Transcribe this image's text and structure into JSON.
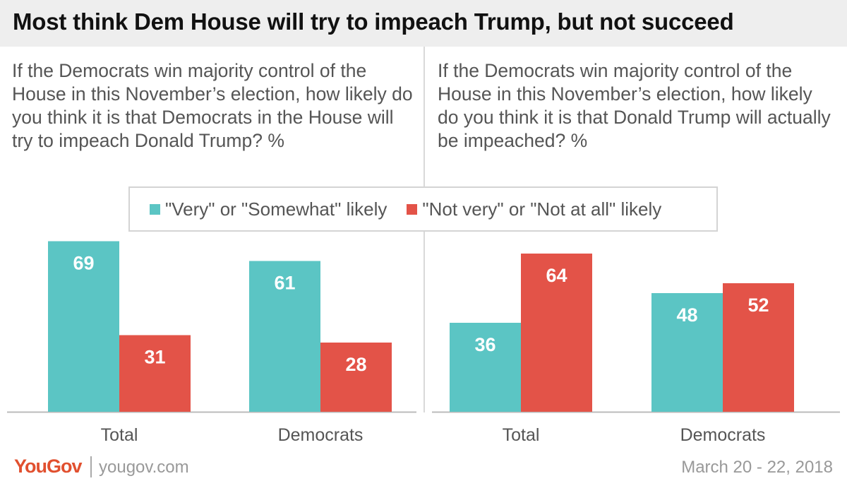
{
  "title": "Most think Dem House will try to impeach Trump, but not succeed",
  "colors": {
    "teal": "#5bc5c4",
    "red": "#e35348",
    "axis": "#bbbbbb"
  },
  "legend": [
    {
      "label": "\"Very\" or \"Somewhat\" likely",
      "color": "#5bc5c4"
    },
    {
      "label": "\"Not very\" or \"Not at all\" likely",
      "color": "#e35348"
    }
  ],
  "chart_data": [
    {
      "type": "bar",
      "title": "If the Democrats win majority control of the House in this November’s election, how likely do you think it is that Democrats in the House will try to impeach Donald Trump? %",
      "categories": [
        "Total",
        "Democrats"
      ],
      "series": [
        {
          "name": "\"Very\" or \"Somewhat\" likely",
          "values": [
            69,
            61
          ]
        },
        {
          "name": "\"Not very\" or \"Not at all\" likely",
          "values": [
            31,
            28
          ]
        }
      ],
      "ylim": [
        0,
        70
      ],
      "grid": false,
      "legend": "top-center"
    },
    {
      "type": "bar",
      "title": "If the Democrats win majority control of the House in this November’s election, how likely do you think it is that Donald Trump will actually be impeached? %",
      "categories": [
        "Total",
        "Democrats"
      ],
      "series": [
        {
          "name": "\"Very\" or \"Somewhat\" likely",
          "values": [
            36,
            48
          ]
        },
        {
          "name": "\"Not very\" or \"Not at all\" likely",
          "values": [
            64,
            52
          ]
        }
      ],
      "ylim": [
        0,
        70
      ],
      "grid": false,
      "legend": "top-center"
    }
  ],
  "footer": {
    "brand": "YouGov",
    "site": "yougov.com",
    "date": "March 20 - 22, 2018"
  }
}
